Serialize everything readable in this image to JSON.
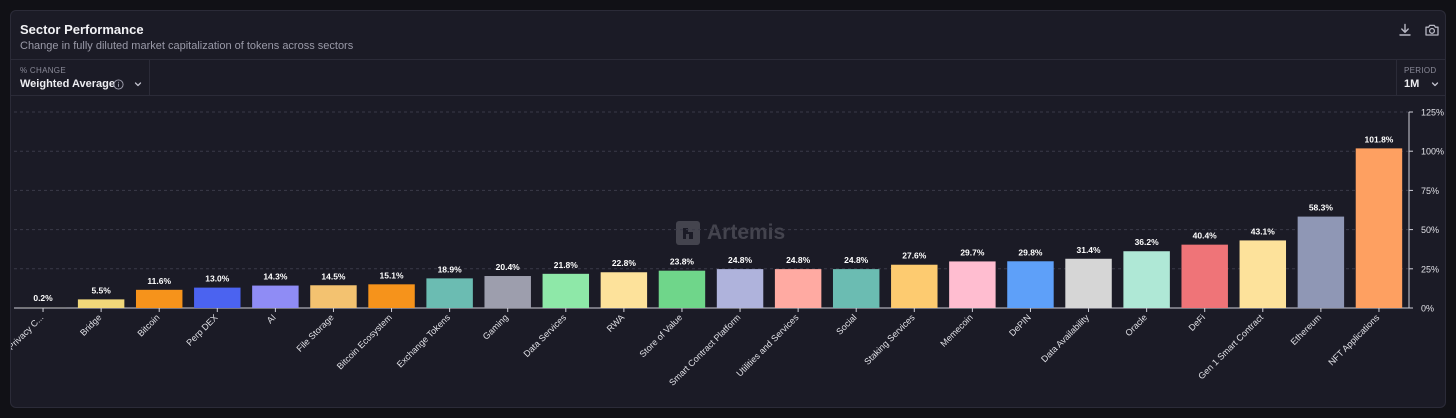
{
  "header": {
    "title": "Sector Performance",
    "subtitle": "Change in fully diluted market capitalization of tokens across sectors"
  },
  "toolbar": {
    "download_icon": "download-icon",
    "camera_icon": "camera-icon"
  },
  "controls": {
    "change_label": "% CHANGE",
    "change_value": "Weighted Average",
    "period_label": "PERIOD",
    "period_value": "1M"
  },
  "watermark": {
    "text": "Artemis"
  },
  "colors": {
    "panel_bg": "#1b1b26",
    "gridline": "#3a3a48",
    "label": "#ffffff",
    "axis_text": "#e0e0e6"
  },
  "chart_data": {
    "type": "bar",
    "categories": [
      "Privacy C...",
      "Bridge",
      "Bitcoin",
      "Perp DEX",
      "AI",
      "File Storage",
      "Bitcoin Ecosystem",
      "Exchange Tokens",
      "Gaming",
      "Data Services",
      "RWA",
      "Store of Value",
      "Smart Contract Platform",
      "Utilities and Services",
      "Social",
      "Staking Services",
      "Memecoin",
      "DePIN",
      "Data Availability",
      "Oracle",
      "DeFi",
      "Gen 1 Smart Contract",
      "Ethereum",
      "NFT Applications"
    ],
    "values": [
      0.2,
      5.5,
      11.6,
      13.0,
      14.3,
      14.5,
      15.1,
      18.9,
      20.4,
      21.8,
      22.8,
      23.8,
      24.8,
      24.8,
      24.8,
      27.6,
      29.7,
      29.8,
      31.4,
      36.2,
      40.4,
      43.1,
      58.3,
      101.8
    ],
    "value_labels": [
      "0.2%",
      "5.5%",
      "11.6%",
      "13.0%",
      "14.3%",
      "14.5%",
      "15.1%",
      "18.9%",
      "20.4%",
      "21.8%",
      "22.8%",
      "23.8%",
      "24.8%",
      "24.8%",
      "24.8%",
      "27.6%",
      "29.7%",
      "29.8%",
      "31.4%",
      "36.2%",
      "40.4%",
      "43.1%",
      "58.3%",
      "101.8%"
    ],
    "bar_colors": [
      "#8a8a8a",
      "#f0d77a",
      "#f6931b",
      "#4b63f0",
      "#8f8cf5",
      "#f3c270",
      "#f6931b",
      "#6bbcb2",
      "#9d9ead",
      "#8ee8a8",
      "#fde29b",
      "#6fd68a",
      "#afb3dc",
      "#ffaaa2",
      "#6bbcb2",
      "#fdcb70",
      "#ffbdd0",
      "#5ea0f9",
      "#d6d6d6",
      "#afe8d6",
      "#ef7478",
      "#fde29b",
      "#8f97b5",
      "#fea061"
    ],
    "y_ticks": [
      0,
      25,
      50,
      75,
      100,
      125
    ],
    "y_tick_labels": [
      "0%",
      "25%",
      "50%",
      "75%",
      "100%",
      "125%"
    ],
    "ylim": [
      0,
      125
    ],
    "ylabel": "",
    "xlabel": "",
    "grid": true,
    "y_axis_side": "right",
    "legend": "none"
  }
}
